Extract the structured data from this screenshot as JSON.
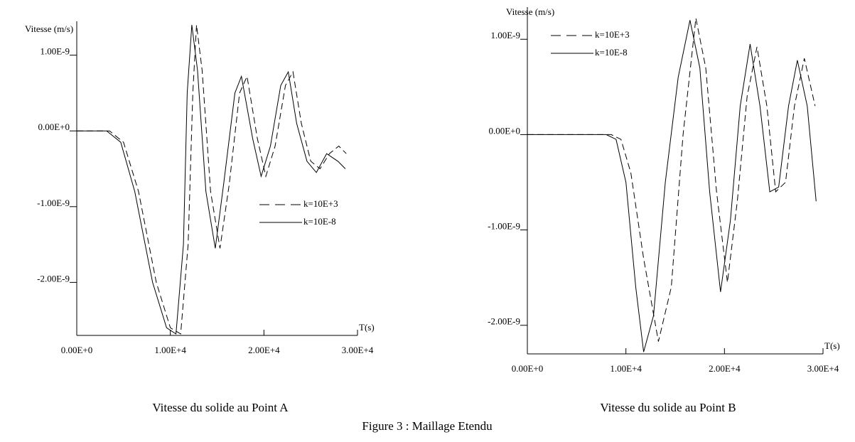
{
  "chart_data": [
    {
      "type": "line",
      "caption": "Vitesse du solide au Point A",
      "y_axis_label": "Vitesse (m/s)",
      "x_axis_label": "T(s)",
      "xlim": [
        0,
        30000
      ],
      "ylim": [
        -2.7e-09,
        1.4e-09
      ],
      "xticks": [
        {
          "value": 0,
          "label": "0.00E+0"
        },
        {
          "value": 10000,
          "label": "1.00E+4"
        },
        {
          "value": 20000,
          "label": "2.00E+4"
        },
        {
          "value": 30000,
          "label": "3.00E+4"
        }
      ],
      "yticks": [
        {
          "value": 1e-09,
          "label": "1.00E-9"
        },
        {
          "value": 0,
          "label": "0.00E+0"
        },
        {
          "value": -1e-09,
          "label": "-1.00E-9"
        },
        {
          "value": -2e-09,
          "label": "-2.00E-9"
        }
      ],
      "legend": "right",
      "series": [
        {
          "name": "k=10E+3",
          "color": "#000000",
          "dash": true,
          "x": [
            0,
            3500,
            5000,
            6600,
            8500,
            10000,
            11100,
            11900,
            12400,
            12800,
            13400,
            14300,
            15300,
            16300,
            17400,
            18200,
            19300,
            20200,
            21200,
            22300,
            23100,
            24000,
            25000,
            26000,
            27000,
            28000,
            28800
          ],
          "values": [
            0,
            0,
            -1.5e-10,
            -8e-10,
            -2e-09,
            -2.6e-09,
            -2.68e-09,
            -1.5e-09,
            5e-10,
            1.4e-09,
            8e-10,
            -8e-10,
            -1.55e-09,
            -7e-10,
            5e-10,
            7.2e-10,
            -1e-10,
            -6e-10,
            -2e-10,
            6e-10,
            7.8e-10,
            1e-10,
            -4e-10,
            -5e-10,
            -3e-10,
            -2e-10,
            -3e-10
          ]
        },
        {
          "name": "k=10E-8",
          "color": "#000000",
          "dash": false,
          "x": [
            0,
            3200,
            4700,
            6200,
            8100,
            9600,
            10600,
            11400,
            11800,
            12300,
            12900,
            13800,
            14800,
            15700,
            16900,
            17600,
            18800,
            19700,
            20700,
            21800,
            22600,
            23500,
            24600,
            25600,
            26700,
            27900,
            28700
          ],
          "values": [
            0,
            0,
            -1.5e-10,
            -8e-10,
            -2e-09,
            -2.6e-09,
            -2.68e-09,
            -1.5e-09,
            5e-10,
            1.4e-09,
            8e-10,
            -8e-10,
            -1.55e-09,
            -7e-10,
            5e-10,
            7.2e-10,
            -1e-10,
            -6e-10,
            -2e-10,
            6e-10,
            7.8e-10,
            1e-10,
            -4e-10,
            -5.5e-10,
            -3e-10,
            -4e-10,
            -5e-10
          ]
        }
      ]
    },
    {
      "type": "line",
      "caption": "Vitesse du solide au Point B",
      "y_axis_label": "Vitesse (m/s)",
      "x_axis_label": "T(s)",
      "xlim": [
        0,
        30000
      ],
      "ylim": [
        -2.3e-09,
        1.3e-09
      ],
      "xticks": [
        {
          "value": 0,
          "label": "0.00E+0"
        },
        {
          "value": 10000,
          "label": "1.00E+4"
        },
        {
          "value": 20000,
          "label": "2.00E+4"
        },
        {
          "value": 30000,
          "label": "3.00E+4"
        }
      ],
      "yticks": [
        {
          "value": 1e-09,
          "label": "1.00E-9"
        },
        {
          "value": 0,
          "label": "0.00E+0"
        },
        {
          "value": -1e-09,
          "label": "-1.00E-9"
        },
        {
          "value": -2e-09,
          "label": "-2.00E-9"
        }
      ],
      "legend": "upper-left",
      "series": [
        {
          "name": "k=10E+3",
          "color": "#000000",
          "dash": true,
          "x": [
            0,
            8500,
            9500,
            10500,
            11800,
            13300,
            14600,
            15800,
            17100,
            18100,
            19200,
            20300,
            21300,
            22300,
            23300,
            24300,
            25200,
            26200,
            27100,
            28100,
            29200
          ],
          "values": [
            0,
            0,
            -5e-11,
            -4e-10,
            -1.3e-09,
            -2.17e-09,
            -1.6e-09,
            0,
            1.22e-09,
            7e-10,
            -6e-10,
            -1.55e-09,
            -7e-10,
            4e-10,
            9.2e-10,
            3e-10,
            -6e-10,
            -5e-10,
            3e-10,
            8e-10,
            3e-10
          ]
        },
        {
          "name": "k=10E-8",
          "color": "#000000",
          "dash": false,
          "x": [
            0,
            8000,
            9000,
            10000,
            11000,
            11800,
            12800,
            14000,
            15300,
            16500,
            17500,
            18500,
            19600,
            20600,
            21600,
            22600,
            23600,
            24600,
            25500,
            26500,
            27400,
            28400,
            29300
          ],
          "values": [
            0,
            0,
            -5e-11,
            -5e-10,
            -1.6e-09,
            -2.28e-09,
            -1.9e-09,
            -5e-10,
            6e-10,
            1.2e-09,
            7e-10,
            -6e-10,
            -1.65e-09,
            -9e-10,
            3e-10,
            9.5e-10,
            3e-10,
            -6e-10,
            -5.5e-10,
            3e-10,
            7.8e-10,
            3e-10,
            -7e-10
          ]
        }
      ]
    }
  ],
  "figure_caption": "Figure 3 : Maillage Etendu"
}
